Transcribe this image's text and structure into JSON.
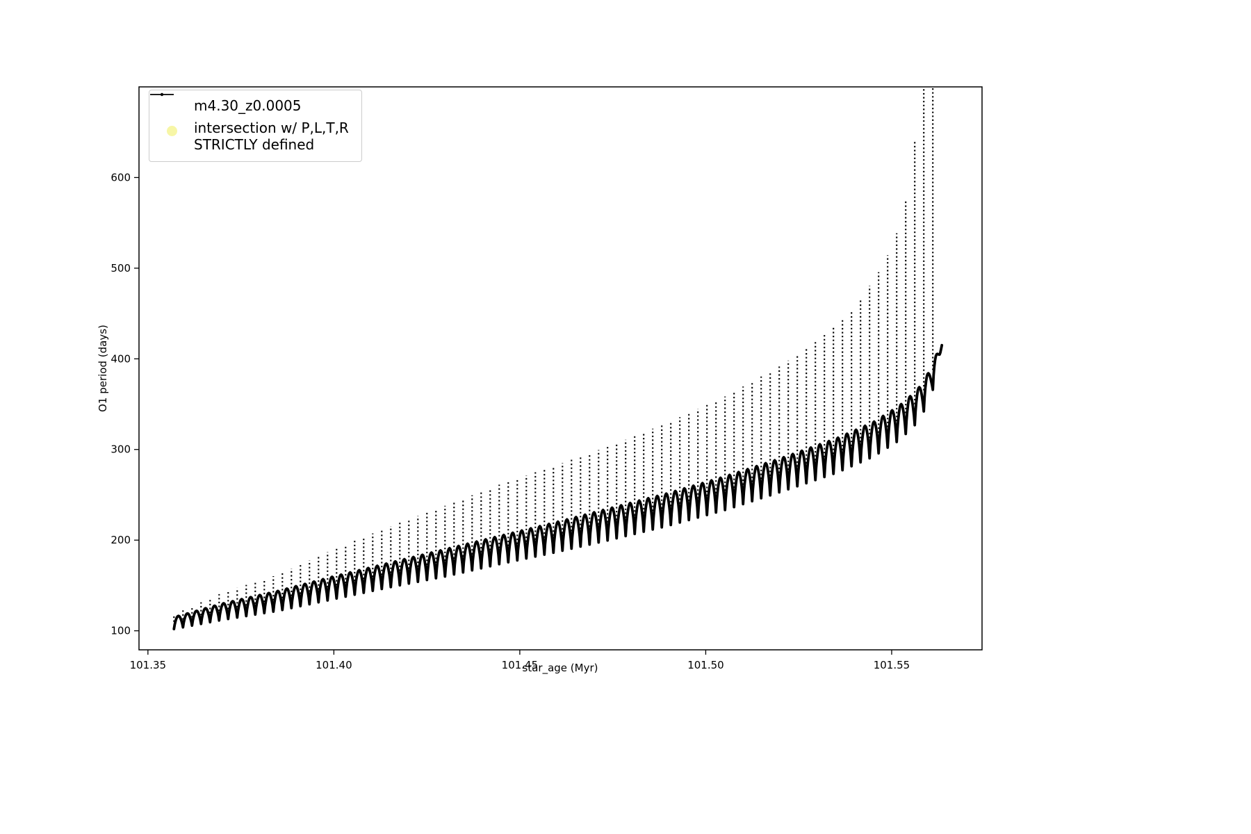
{
  "figure": {
    "background_color": "#ffffff",
    "axes_border_color": "#000000"
  },
  "chart_data": {
    "type": "scatter",
    "title": "",
    "xlabel": "star_age (Myr)",
    "ylabel": "O1 period (days)",
    "xlim": [
      101.3476,
      101.5743
    ],
    "ylim": [
      79,
      700
    ],
    "x_ticks": [
      101.35,
      101.4,
      101.45,
      101.5,
      101.55
    ],
    "x_tick_labels": [
      "101.35",
      "101.40",
      "101.45",
      "101.50",
      "101.55"
    ],
    "y_ticks": [
      100,
      200,
      300,
      400,
      500,
      600
    ],
    "y_tick_labels": [
      "100",
      "200",
      "300",
      "400",
      "500",
      "600"
    ],
    "grid": false,
    "legend_position": "upper-left",
    "series": [
      {
        "name": "m4.30_z0.0005",
        "color": "#000000",
        "marker": "point-line",
        "description": "Dense oscillating pulsation-period track: repeated scalloped bumps with upward dotted spikes; baseline rises from ~100 days at 101.357 Myr to ~420 days at 101.564 Myr; spike peaks grow from ~120 to beyond the top of the axes (clipped) near 101.56 Myr.",
        "oscillation": {
          "spike_count": 85,
          "x_start": 101.357,
          "x_end": 101.5635,
          "baseline_curve": [
            [
              101.357,
              102
            ],
            [
              101.37,
              112
            ],
            [
              101.385,
              122
            ],
            [
              101.4,
              135
            ],
            [
              101.415,
              148
            ],
            [
              101.43,
              160
            ],
            [
              101.445,
              174
            ],
            [
              101.46,
              187
            ],
            [
              101.475,
              201
            ],
            [
              101.49,
              216
            ],
            [
              101.505,
              233
            ],
            [
              101.52,
              253
            ],
            [
              101.535,
              274
            ],
            [
              101.545,
              292
            ],
            [
              101.552,
              310
            ],
            [
              101.557,
              330
            ],
            [
              101.56,
              352
            ],
            [
              101.562,
              378
            ],
            [
              101.5635,
              415
            ]
          ],
          "hump_top_curve": [
            [
              101.357,
              115
            ],
            [
              101.37,
              130
            ],
            [
              101.385,
              144
            ],
            [
              101.4,
              160
            ],
            [
              101.415,
              175
            ],
            [
              101.43,
              190
            ],
            [
              101.445,
              205
            ],
            [
              101.46,
              220
            ],
            [
              101.475,
              236
            ],
            [
              101.49,
              252
            ],
            [
              101.505,
              270
            ],
            [
              101.52,
              290
            ],
            [
              101.535,
              312
            ],
            [
              101.545,
              330
            ],
            [
              101.552,
              348
            ],
            [
              101.557,
              366
            ],
            [
              101.56,
              385
            ],
            [
              101.562,
              402
            ],
            [
              101.5635,
              420
            ]
          ],
          "spike_peak_curve": [
            [
              101.357,
              118
            ],
            [
              101.37,
              142
            ],
            [
              101.385,
              162
            ],
            [
              101.4,
              190
            ],
            [
              101.415,
              215
            ],
            [
              101.43,
              238
            ],
            [
              101.445,
              262
            ],
            [
              101.46,
              283
            ],
            [
              101.475,
              305
            ],
            [
              101.49,
              330
            ],
            [
              101.505,
              358
            ],
            [
              101.52,
              392
            ],
            [
              101.53,
              420
            ],
            [
              101.54,
              455
            ],
            [
              101.548,
              505
            ],
            [
              101.553,
              555
            ],
            [
              101.556,
              630
            ],
            [
              101.5585,
              760
            ],
            [
              101.5605,
              900
            ],
            [
              101.562,
              900
            ],
            [
              101.5635,
              700
            ]
          ]
        }
      },
      {
        "name": "intersection w/ P,L,T,R STRICTLY defined",
        "color": "#f7f6a6",
        "marker": "circle",
        "points": []
      }
    ]
  },
  "legend": {
    "entry1_label": "m4.30_z0.0005",
    "entry2_line1": "intersection w/ P,L,T,R",
    "entry2_line2": "STRICTLY defined"
  }
}
